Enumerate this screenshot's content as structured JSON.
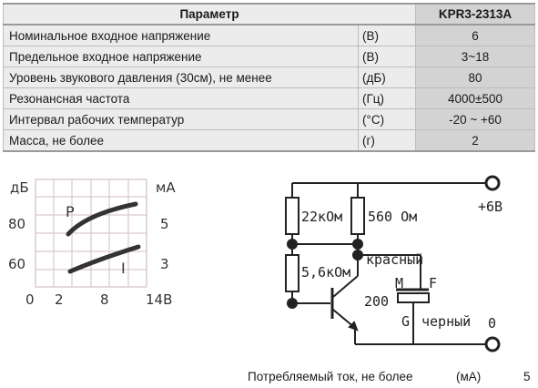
{
  "table": {
    "header_param": "Параметр",
    "header_model": "KPR3-2313A",
    "rows": [
      {
        "name": "Номинальное входное напряжение",
        "unit": "(В)",
        "value": "6"
      },
      {
        "name": "Предельное входное напряжение",
        "unit": "(В)",
        "value": "3~18"
      },
      {
        "name": "Уровень звукового давления (30см), не менее",
        "unit": "(дБ)",
        "value": "80"
      },
      {
        "name": "Резонансная частота",
        "unit": "(Гц)",
        "value": "4000±500"
      },
      {
        "name": "Интервал рабочих температур",
        "unit": "(°C)",
        "value": "-20 ~ +60"
      },
      {
        "name": "Масса, не более",
        "unit": "(г)",
        "value": "2"
      }
    ]
  },
  "graph": {
    "left_unit": "дБ",
    "right_unit": "мА",
    "left_ticks": [
      "80",
      "60"
    ],
    "right_ticks": [
      "5",
      "3"
    ],
    "x_ticks": [
      "0",
      "2",
      "8",
      "14В"
    ],
    "curve_p_label": "P",
    "curve_i_label": "I",
    "grid_color": "#d9c9c9"
  },
  "circuit": {
    "r1": "22кОм",
    "r2": "560 Ом",
    "r3": "5,6кОм",
    "plus_label": "+6В",
    "zero_label": "0",
    "wire_red": "красный",
    "wire_black": "черный",
    "pin_m": "M",
    "pin_f": "F",
    "pin_g": "G",
    "part_number": "200"
  },
  "footer": {
    "current_label": "Потребляемый ток, не более",
    "current_unit": "(мА)",
    "current_value": "5"
  }
}
